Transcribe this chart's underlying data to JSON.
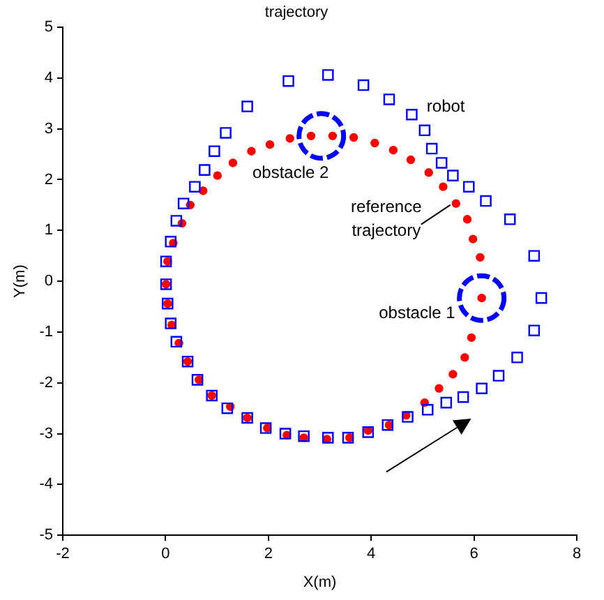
{
  "chart_data": {
    "type": "scatter",
    "title": "trajectory",
    "xlabel": "X(m)",
    "ylabel": "Y(m)",
    "xlim": [
      -2,
      8
    ],
    "xticks": [
      -2,
      0,
      2,
      4,
      6,
      8
    ],
    "ylim": [
      -5,
      5
    ],
    "yticks": [
      -5,
      -4,
      -3,
      -2,
      -1,
      0,
      1,
      2,
      3,
      4,
      5
    ],
    "grid": false,
    "legend": false,
    "series": [
      {
        "name": "robot",
        "marker": "square",
        "color": "#0000ff",
        "x": [
          0.01,
          0.01,
          0.04,
          0.1,
          0.21,
          0.43,
          0.62,
          0.9,
          1.2,
          1.59,
          1.95,
          2.33,
          2.69,
          3.16,
          3.55,
          3.94,
          4.32,
          4.71,
          5.1,
          5.46,
          5.79,
          6.15,
          6.48,
          6.84,
          7.17,
          7.31,
          7.17,
          6.7,
          6.23,
          5.9,
          5.59,
          5.37,
          5.18,
          5.04,
          4.79,
          4.35,
          3.85,
          3.16,
          2.39,
          1.59,
          1.17,
          0.95,
          0.76,
          0.57,
          0.35,
          0.21,
          0.1
        ],
        "values": [
          0.39,
          -0.06,
          -0.44,
          -0.83,
          -1.19,
          -1.58,
          -1.94,
          -2.25,
          -2.5,
          -2.69,
          -2.89,
          -3,
          -3.05,
          -3.08,
          -3.08,
          -2.97,
          -2.83,
          -2.67,
          -2.53,
          -2.39,
          -2.28,
          -2.11,
          -1.86,
          -1.5,
          -0.97,
          -0.33,
          0.5,
          1.22,
          1.58,
          1.86,
          2.08,
          2.33,
          2.61,
          2.97,
          3.28,
          3.58,
          3.86,
          4.06,
          3.94,
          3.44,
          2.92,
          2.56,
          2.19,
          1.86,
          1.53,
          1.19,
          0.78
        ]
      },
      {
        "name": "reference trajectory",
        "marker": "circle",
        "color": "#ff0000",
        "x": [
          2.83,
          2.42,
          2.03,
          1.67,
          1.31,
          1.01,
          0.73,
          0.48,
          0.32,
          0.15,
          0.04,
          0.01,
          0.04,
          0.12,
          0.26,
          0.43,
          0.65,
          0.9,
          1.26,
          1.59,
          1.98,
          2.36,
          2.69,
          3.14,
          3.58,
          3.94,
          4.35,
          4.68,
          5.04,
          5.32,
          5.59,
          5.82,
          5.95,
          6.15,
          6.12,
          5.98,
          5.87,
          5.65,
          5.4,
          5.12,
          4.77,
          4.43,
          4.07,
          3.66,
          3.25
        ],
        "values": [
          2.86,
          2.81,
          2.69,
          2.56,
          2.33,
          2.08,
          1.78,
          1.5,
          1.14,
          0.75,
          0.39,
          -0.06,
          -0.44,
          -0.86,
          -1.22,
          -1.58,
          -1.94,
          -2.25,
          -2.47,
          -2.69,
          -2.89,
          -3.03,
          -3.08,
          -3.11,
          -3.08,
          -2.94,
          -2.83,
          -2.64,
          -2.39,
          -2.11,
          -1.83,
          -1.5,
          -1.11,
          -0.33,
          0.47,
          0.83,
          1.22,
          1.53,
          1.86,
          2.14,
          2.39,
          2.58,
          2.72,
          2.83,
          2.86
        ]
      },
      {
        "name": "obstacle 1",
        "line_style": "dashed",
        "marker": "circle",
        "color": "#0000ff",
        "x": [
          6.15
        ],
        "values": [
          -0.33
        ]
      },
      {
        "name": "obstacle 2",
        "line_style": "dashed",
        "marker": "circle",
        "color": "#0000ff",
        "x": [
          3.03
        ],
        "values": [
          2.86
        ]
      }
    ]
  }
}
